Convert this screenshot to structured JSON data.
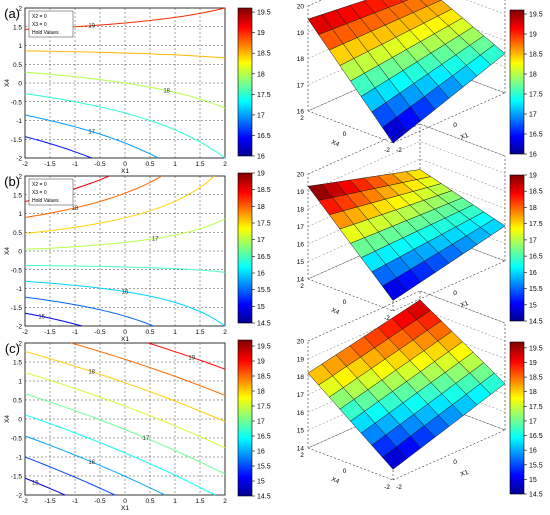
{
  "chart_data": [
    {
      "type": "contour",
      "panel_label": "(a)",
      "xlabel": "X1",
      "ylabel": "X4",
      "xlim": [
        -2,
        2
      ],
      "ylim": [
        -2,
        2
      ],
      "xticks": [
        "-2",
        "-1.5",
        "-1",
        "-0.5",
        "0",
        "0.5",
        "1",
        "1.5",
        "2"
      ],
      "yticks": [
        "-2",
        "-1.5",
        "-1",
        "-0.5",
        "0",
        "0.5",
        "1",
        "1.5",
        "2"
      ],
      "grid": "on (dashed)",
      "legend_lines": [
        "X2 = 0",
        "X3 = 0",
        "Hold Values"
      ],
      "contour_levels": [
        "16",
        "17",
        "18",
        "19"
      ],
      "colorbar": {
        "ticks": [
          "16",
          "16.5",
          "17",
          "17.5",
          "18",
          "18.5",
          "19",
          "19.5"
        ],
        "range": [
          16,
          19.6
        ]
      }
    },
    {
      "type": "surface",
      "xlabel": "X1",
      "ylabel": "X4",
      "z_ticks": [
        "16",
        "17",
        "18",
        "19",
        "20"
      ],
      "xticks": [
        "-2",
        "0",
        "2"
      ],
      "yticks": [
        "-2",
        "0",
        "2"
      ],
      "corners": {
        "x-2_y2": 19.5,
        "x2_y2": 19.0,
        "x2_y-2": 17.5,
        "x-2_y-2": 16.0
      },
      "colorbar": {
        "ticks": [
          "16",
          "16.5",
          "17",
          "17.5",
          "18",
          "18.5",
          "19",
          "19.5"
        ],
        "range": [
          16,
          19.6
        ]
      }
    },
    {
      "type": "contour",
      "panel_label": "(b)",
      "xlabel": "X1",
      "ylabel": "X4",
      "xlim": [
        -2,
        2
      ],
      "ylim": [
        -2,
        2
      ],
      "xticks": [
        "-2",
        "-1.5",
        "-1",
        "-0.5",
        "0",
        "0.5",
        "1",
        "1.5",
        "2"
      ],
      "yticks": [
        "-2",
        "-1.5",
        "-1",
        "-0.5",
        "0",
        "0.5",
        "1",
        "1.5",
        "2"
      ],
      "grid": "on (dashed)",
      "legend_lines": [
        "X2 = 0",
        "X3 = 0",
        "Hold Values"
      ],
      "contour_levels": [
        "15",
        "16",
        "17",
        "18"
      ],
      "colorbar": {
        "ticks": [
          "14.5",
          "15",
          "15.5",
          "16",
          "16.5",
          "17",
          "17.5",
          "18",
          "18.5",
          "19"
        ],
        "range": [
          14.5,
          19
        ]
      }
    },
    {
      "type": "surface",
      "xlabel": "X1",
      "ylabel": "X4",
      "z_ticks": [
        "14",
        "15",
        "16",
        "17",
        "18",
        "19",
        "20"
      ],
      "xticks": [
        "-2",
        "0",
        "2"
      ],
      "yticks": [
        "-2",
        "0",
        "2"
      ],
      "corners": {
        "x-2_y2": 19.3,
        "x2_y2": 17.4,
        "x2_y-2": 16.0,
        "x-2_y-2": 14.6
      },
      "colorbar": {
        "ticks": [
          "14.5",
          "15",
          "15.5",
          "16",
          "16.5",
          "17",
          "17.5",
          "18",
          "18.5",
          "19"
        ],
        "range": [
          14.5,
          19
        ]
      }
    },
    {
      "type": "contour",
      "panel_label": "(c)",
      "xlabel": "X1",
      "ylabel": "X4",
      "xlim": [
        -2,
        2
      ],
      "ylim": [
        -2,
        2
      ],
      "xticks": [
        "-2",
        "-1.5",
        "-1",
        "-0.5",
        "0",
        "0.5",
        "1",
        "1.5",
        "2"
      ],
      "yticks": [
        "-2",
        "-1.5",
        "-1",
        "-0.5",
        "0",
        "0.5",
        "1",
        "1.5",
        "2"
      ],
      "grid": "on (dashed)",
      "contour_levels": [
        "15",
        "16",
        "17",
        "18",
        "19"
      ],
      "colorbar": {
        "ticks": [
          "14.5",
          "15",
          "15.5",
          "16",
          "16.5",
          "17",
          "17.5",
          "18",
          "18.5",
          "19",
          "19.5"
        ],
        "range": [
          14.5,
          19.7
        ]
      }
    },
    {
      "type": "surface",
      "xlabel": "X1",
      "ylabel": "X4",
      "z_ticks": [
        "14",
        "15",
        "16",
        "17",
        "18",
        "19",
        "20"
      ],
      "xticks": [
        "-2",
        "0",
        "2"
      ],
      "yticks": [
        "-2",
        "0",
        "2"
      ],
      "corners": {
        "x-2_y2": 18.2,
        "x2_y2": 19.5,
        "x2_y-2": 16.6,
        "x-2_y-2": 14.6
      },
      "colorbar": {
        "ticks": [
          "14.5",
          "15",
          "15.5",
          "16",
          "16.5",
          "17",
          "17.5",
          "18",
          "18.5",
          "19",
          "19.5"
        ],
        "range": [
          14.5,
          19.7
        ]
      }
    }
  ],
  "colors": {
    "grid": "#555555",
    "axis": "#000000",
    "mesh": "#1a1a1a"
  }
}
